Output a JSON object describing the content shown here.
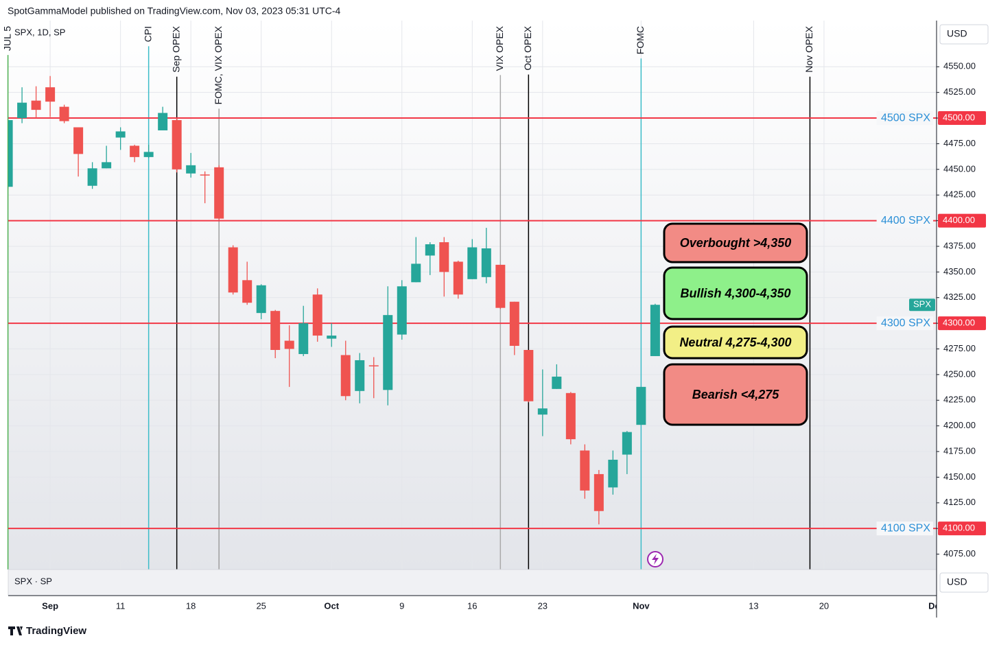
{
  "header": "SpotGammaModel published on TradingView.com, Nov 03, 2023 05:31 UTC-4",
  "currency": "USD",
  "pane_label": "SPX · SP",
  "brand": "TradingView",
  "chart_data": {
    "type": "candlestick",
    "title": "SPX, 1D, SP",
    "up_color": "#26a69a",
    "down_color": "#ef5350",
    "x": [
      -3,
      -2,
      -1,
      0,
      1,
      2,
      3,
      4,
      5,
      6,
      7,
      8,
      9,
      10,
      11,
      12,
      13,
      14,
      15,
      16,
      17,
      18,
      19,
      20,
      21,
      22,
      23,
      24,
      25,
      26,
      27,
      28,
      29,
      30,
      31,
      32,
      33,
      34,
      35,
      36,
      37,
      38,
      39,
      40,
      41,
      42,
      43
    ],
    "open": [
      4433,
      4500,
      4517,
      4530,
      4511,
      4491,
      4434,
      4451,
      4481,
      4473,
      4462,
      4488,
      4498,
      4446,
      4445,
      4452,
      4374,
      4342,
      4310,
      4312,
      4283,
      4270,
      4328,
      4285,
      4269,
      4234,
      4259,
      4235,
      4289,
      4340,
      4366,
      4379,
      4360,
      4343,
      4345,
      4357,
      4321,
      4274,
      4211,
      4236,
      4232,
      4176,
      4153,
      4140,
      4172,
      4201,
      4268
    ],
    "high": [
      4502,
      4530,
      4531,
      4541,
      4513,
      4491,
      4457,
      4473,
      4491,
      4474,
      4474,
      4511,
      4500,
      4466,
      4448,
      4454,
      4376,
      4360,
      4338,
      4313,
      4298,
      4317,
      4334,
      4300,
      4283,
      4271,
      4267,
      4336,
      4342,
      4384,
      4379,
      4384,
      4361,
      4382,
      4393,
      4357,
      4321,
      4274,
      4255,
      4260,
      4233,
      4182,
      4157,
      4176,
      4195,
      4238,
      4319
    ],
    "low": [
      4431,
      4495,
      4500,
      4501,
      4495,
      4443,
      4431,
      4451,
      4469,
      4457,
      4461,
      4488,
      4447,
      4442,
      4417,
      4401,
      4328,
      4318,
      4304,
      4266,
      4238,
      4268,
      4282,
      4277,
      4225,
      4222,
      4227,
      4220,
      4284,
      4340,
      4347,
      4326,
      4324,
      4343,
      4339,
      4314,
      4269,
      4223,
      4190,
      4236,
      4182,
      4129,
      4104,
      4133,
      4153,
      4201,
      4268
    ],
    "close": [
      4498,
      4515,
      4508,
      4516,
      4497,
      4465,
      4451,
      4457,
      4487,
      4462,
      4467,
      4505,
      4450,
      4454,
      4444,
      4402,
      4330,
      4320,
      4337,
      4274,
      4275,
      4300,
      4288,
      4288,
      4229,
      4264,
      4258,
      4308,
      4336,
      4358,
      4377,
      4350,
      4328,
      4374,
      4373,
      4315,
      4278,
      4224,
      4217,
      4248,
      4187,
      4137,
      4117,
      4167,
      4194,
      4238,
      4318
    ],
    "xlim": [
      -2.98,
      63
    ],
    "xticks": [
      {
        "value": 0,
        "label": "Sep"
      },
      {
        "value": 5,
        "label": "11"
      },
      {
        "value": 10,
        "label": "18"
      },
      {
        "value": 15,
        "label": "25"
      },
      {
        "value": 20,
        "label": "Oct"
      },
      {
        "value": 25,
        "label": "9"
      },
      {
        "value": 30,
        "label": "16"
      },
      {
        "value": 35,
        "label": "23"
      },
      {
        "value": 42,
        "label": "Nov"
      },
      {
        "value": 50,
        "label": "13"
      },
      {
        "value": 55,
        "label": "20"
      },
      {
        "value": 63,
        "label": "Dec"
      }
    ],
    "ylim": [
      4060,
      4595
    ],
    "yticks": [
      {
        "value": 4075,
        "label": "4075.00"
      },
      {
        "value": 4100,
        "label": "4100.00"
      },
      {
        "value": 4125,
        "label": "4125.00"
      },
      {
        "value": 4150,
        "label": "4150.00"
      },
      {
        "value": 4175,
        "label": "4175.00"
      },
      {
        "value": 4200,
        "label": "4200.00"
      },
      {
        "value": 4225,
        "label": "4225.00"
      },
      {
        "value": 4250,
        "label": "4250.00"
      },
      {
        "value": 4275,
        "label": "4275.00"
      },
      {
        "value": 4300,
        "label": "4300.00"
      },
      {
        "value": 4325,
        "label": "4325.00"
      },
      {
        "value": 4350,
        "label": "4350.00"
      },
      {
        "value": 4375,
        "label": "4375.00"
      },
      {
        "value": 4400,
        "label": "4400.00"
      },
      {
        "value": 4425,
        "label": "4425.00"
      },
      {
        "value": 4450,
        "label": "4450.00"
      },
      {
        "value": 4475,
        "label": "4475.00"
      },
      {
        "value": 4500,
        "label": "4500.00"
      },
      {
        "value": 4525,
        "label": "4525.00"
      },
      {
        "value": 4550,
        "label": "4550.00"
      }
    ],
    "grid": true,
    "levels": [
      {
        "value": 4500,
        "label": "4500 SPX",
        "tag": "4500.00",
        "color": "#f23645"
      },
      {
        "value": 4400,
        "label": "4400 SPX",
        "tag": "4400.00",
        "color": "#f23645"
      },
      {
        "value": 4300,
        "label": "4300 SPX",
        "tag": "4300.00",
        "color": "#f23645"
      },
      {
        "value": 4100,
        "label": "4100 SPX",
        "tag": "4100.00",
        "color": "#f23645"
      }
    ],
    "events": [
      {
        "x": -3,
        "label": "JUL 5",
        "color": "#4caf50"
      },
      {
        "x": 7,
        "label": "CPI",
        "color": "#3bbcc8"
      },
      {
        "x": 9,
        "label": "Sep OPEX",
        "color": "#000000"
      },
      {
        "x": 12,
        "label": "FOMC, VIX OPEX",
        "color": "#9e9e9e"
      },
      {
        "x": 32,
        "label": "VIX OPEX",
        "color": "#aaaaaa"
      },
      {
        "x": 34,
        "label": "Oct OPEX",
        "color": "#000000"
      },
      {
        "x": 42,
        "label": "FOMC",
        "color": "#3bbcc8"
      },
      {
        "x": 54,
        "label": "Nov OPEX",
        "color": "#000000"
      }
    ],
    "zones": [
      {
        "label": "Overbought >4,350",
        "color": "#f28b85"
      },
      {
        "label": "Bullish 4,300-4,350",
        "color": "#8ef08a"
      },
      {
        "label": "Neutral 4,275-4,300",
        "color": "#f2ef86"
      },
      {
        "label": "Bearish <4,275",
        "color": "#f28b85"
      }
    ],
    "last_tag": "SPX"
  }
}
